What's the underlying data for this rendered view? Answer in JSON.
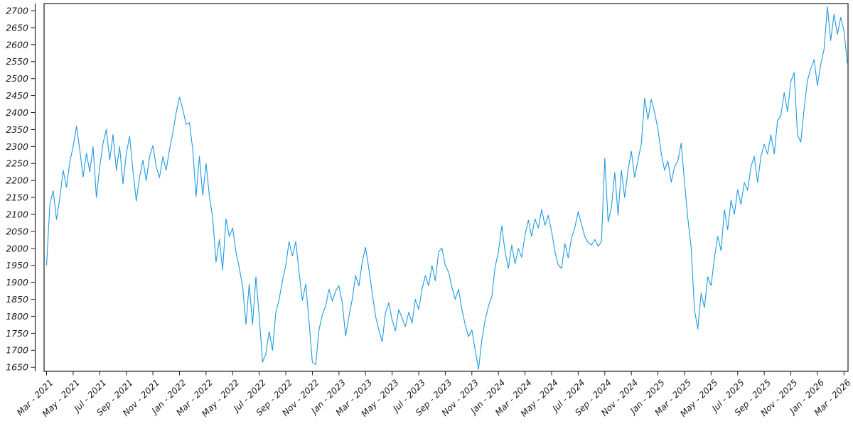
{
  "figure": {
    "background": "#ffffff",
    "frame_color": "#1a1a1a",
    "tick_color": "#1a1a1a",
    "text_color": "#1a1a1a"
  },
  "chart_data": {
    "type": "line",
    "title": "",
    "xlabel": "",
    "ylabel": "",
    "grid": false,
    "legend": false,
    "x_axis": {
      "tick_labels": [
        "Mar - 2021",
        "May - 2021",
        "Jul - 2021",
        "Sep - 2021",
        "Nov - 2021",
        "Jan - 2022",
        "Mar - 2022",
        "May - 2022",
        "Jul - 2022",
        "Sep - 2022",
        "Nov - 2022",
        "Jan - 2023",
        "Mar - 2023",
        "May - 2023",
        "Jul - 2023",
        "Sep - 2023",
        "Nov - 2023",
        "Jan - 2024",
        "Mar - 2024",
        "May - 2024",
        "Jul - 2024",
        "Sep - 2024",
        "Nov - 2024",
        "Jan - 2025",
        "Mar - 2025",
        "May - 2025",
        "Jul - 2025",
        "Sep - 2025",
        "Nov - 2025",
        "Jan - 2026",
        "Mar - 2026"
      ],
      "tick_months": [
        0,
        2,
        4,
        6,
        8,
        10,
        12,
        14,
        16,
        18,
        20,
        22,
        24,
        26,
        28,
        30,
        32,
        34,
        36,
        38,
        40,
        42,
        44,
        46,
        48,
        50,
        52,
        54,
        56,
        58,
        60
      ]
    },
    "y_axis": {
      "ticks": [
        1650,
        1700,
        1750,
        1800,
        1850,
        1900,
        1950,
        2000,
        2050,
        2100,
        2150,
        2200,
        2250,
        2300,
        2350,
        2400,
        2450,
        2500,
        2550,
        2600,
        2650,
        2700
      ]
    },
    "ylim": [
      1638,
      2721
    ],
    "xlim_months": [
      0,
      60.25
    ],
    "series": [
      {
        "name": "value",
        "color": "#1e9be0",
        "x_start_month": 0,
        "x_step_month": 0.25,
        "values": [
          1950,
          2130,
          2170,
          2085,
          2150,
          2230,
          2180,
          2255,
          2300,
          2360,
          2290,
          2210,
          2280,
          2225,
          2300,
          2150,
          2240,
          2310,
          2350,
          2260,
          2335,
          2230,
          2300,
          2190,
          2280,
          2330,
          2230,
          2140,
          2210,
          2260,
          2200,
          2270,
          2303,
          2240,
          2209,
          2270,
          2230,
          2290,
          2340,
          2400,
          2445,
          2410,
          2365,
          2370,
          2290,
          2152,
          2271,
          2156,
          2250,
          2156,
          2090,
          1960,
          2026,
          1937,
          2087,
          2035,
          2060,
          1990,
          1943,
          1888,
          1776,
          1895,
          1776,
          1916,
          1800,
          1665,
          1690,
          1755,
          1700,
          1811,
          1850,
          1905,
          1950,
          2020,
          1978,
          2020,
          1930,
          1847,
          1895,
          1784,
          1665,
          1658,
          1760,
          1805,
          1830,
          1880,
          1845,
          1875,
          1890,
          1840,
          1742,
          1800,
          1850,
          1920,
          1890,
          1960,
          2003,
          1940,
          1870,
          1800,
          1760,
          1725,
          1810,
          1840,
          1790,
          1757,
          1820,
          1795,
          1770,
          1812,
          1780,
          1850,
          1820,
          1880,
          1920,
          1890,
          1950,
          1905,
          1990,
          2001,
          1950,
          1930,
          1885,
          1850,
          1880,
          1820,
          1775,
          1740,
          1760,
          1700,
          1644,
          1730,
          1790,
          1830,
          1859,
          1945,
          1990,
          2066,
          1990,
          1941,
          2010,
          1955,
          2000,
          1974,
          2040,
          2083,
          2035,
          2087,
          2060,
          2115,
          2068,
          2097,
          2050,
          1990,
          1951,
          1941,
          2014,
          1972,
          2030,
          2062,
          2108,
          2070,
          2035,
          2017,
          2010,
          2026,
          2006,
          2020,
          2265,
          2077,
          2121,
          2223,
          2098,
          2230,
          2150,
          2230,
          2286,
          2209,
          2260,
          2307,
          2443,
          2380,
          2439,
          2400,
          2351,
          2280,
          2230,
          2257,
          2195,
          2240,
          2257,
          2310,
          2194,
          2089,
          2003,
          1818,
          1763,
          1868,
          1826,
          1916,
          1890,
          1972,
          2035,
          1993,
          2114,
          2055,
          2142,
          2100,
          2173,
          2130,
          2194,
          2171,
          2240,
          2271,
          2194,
          2271,
          2307,
          2278,
          2334,
          2278,
          2376,
          2390,
          2459,
          2403,
          2491,
          2518,
          2334,
          2313,
          2411,
          2494,
          2530,
          2556,
          2480,
          2541,
          2587,
          2712,
          2612,
          2689,
          2630,
          2680,
          2641,
          2545
        ]
      }
    ]
  }
}
